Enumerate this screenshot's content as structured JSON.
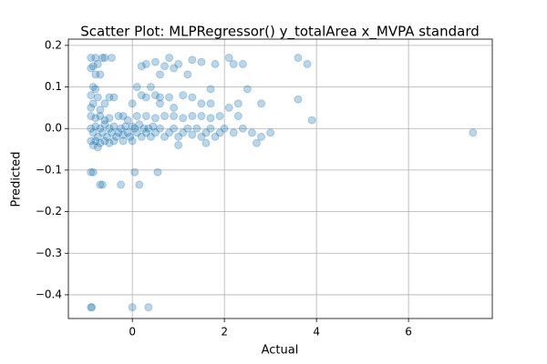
{
  "chart_data": {
    "type": "scatter",
    "title": "Scatter Plot: MLPRegressor() y_totalArea x_MVPA standard",
    "x_label": "Actual",
    "y_label": "Predicted",
    "color": "#1f77b4",
    "grid": true,
    "xlim": [
      -1.39,
      7.82
    ],
    "ylim": [
      -0.457,
      0.215
    ],
    "xticks": [
      0,
      2,
      4,
      6
    ],
    "yticks": [
      {
        "value": -0.4,
        "label": "−0.4"
      },
      {
        "value": -0.3,
        "label": "−0.3"
      },
      {
        "value": -0.2,
        "label": "−0.2"
      },
      {
        "value": -0.1,
        "label": "−0.1"
      },
      {
        "value": 0,
        "label": "0.0"
      },
      0.1,
      0.2
    ],
    "x": [
      -0.9,
      -0.88,
      0,
      0.35,
      -0.9,
      -0.85,
      -0.7,
      -0.65,
      -0.25,
      0.15,
      0.05,
      0.55,
      -0.9,
      -0.85,
      -0.8,
      -0.75,
      -0.65,
      -0.6,
      -0.45,
      -0.9,
      -0.8,
      -0.7,
      -0.85,
      -0.8,
      -0.9,
      -0.75,
      -0.5,
      -0.4,
      -0.85,
      -0.6,
      -0.9,
      -0.7,
      -0.9,
      -0.8,
      -0.7,
      -0.6,
      -0.5,
      -0.3,
      -0.2,
      -0.9,
      -0.85,
      -0.8,
      -0.75,
      -0.7,
      -0.65,
      -0.6,
      -0.55,
      -0.5,
      -0.45,
      -0.4,
      -0.35,
      -0.3,
      -0.25,
      -0.2,
      -0.15,
      -0.1,
      -0.05,
      -0.9,
      -0.85,
      -0.8,
      -0.75,
      -0.7,
      -0.6,
      -0.5,
      -0.4,
      -0.2,
      0,
      0.05,
      0.1,
      0.15,
      0.2,
      0.25,
      0.3,
      0.35,
      0.4,
      0.45,
      0.5,
      0.6,
      0.7,
      0.8,
      0.9,
      1.0,
      1.1,
      1.2,
      1.3,
      1.4,
      1.5,
      1.6,
      1.7,
      1.8,
      1.9,
      2.0,
      2.2,
      2.4,
      2.6,
      2.8,
      3.0,
      0.1,
      0.3,
      0.5,
      0.7,
      0.9,
      1.1,
      1.3,
      1.5,
      1.7,
      1.9,
      2.3,
      0,
      0.2,
      0.3,
      0.5,
      0.6,
      0.8,
      1.1,
      1.3,
      0.6,
      0.9,
      1.5,
      1.7,
      2.1,
      2.3,
      2.8,
      0.2,
      0.3,
      0.5,
      0.6,
      0.7,
      0.8,
      0.9,
      1.0,
      1.2,
      1.3,
      1.5,
      1.8,
      2.1,
      2.2,
      2.4,
      0.1,
      0.4,
      1.7,
      2.5,
      0,
      -0.1,
      1.0,
      1.6,
      2.7,
      3.6,
      3.8,
      3.6,
      3.9,
      7.4
    ],
    "values": [
      -0.43,
      -0.43,
      -0.43,
      -0.43,
      -0.105,
      -0.105,
      -0.135,
      -0.135,
      -0.135,
      -0.135,
      -0.105,
      -0.105,
      0.17,
      0.15,
      0.17,
      0.155,
      0.17,
      0.17,
      0.17,
      0.145,
      0.13,
      0.13,
      0.1,
      0.095,
      0.08,
      0.075,
      0.075,
      0.075,
      0.06,
      0.06,
      0.05,
      0.045,
      0.03,
      0.025,
      0.03,
      0.02,
      0.025,
      0.03,
      0.03,
      0,
      -0.01,
      0.005,
      -0.02,
      0,
      -0.01,
      0.01,
      -0.02,
      0,
      -0.01,
      0.005,
      -0.02,
      -0.01,
      0,
      -0.015,
      0.005,
      -0.01,
      -0.02,
      -0.03,
      -0.04,
      -0.03,
      -0.045,
      -0.035,
      -0.03,
      -0.035,
      -0.03,
      -0.03,
      -0.03,
      0,
      -0.01,
      0.01,
      -0.02,
      0,
      -0.01,
      0,
      -0.02,
      0.005,
      -0.01,
      0,
      -0.02,
      -0.01,
      0,
      -0.02,
      -0.01,
      0,
      -0.015,
      0,
      -0.02,
      -0.01,
      0,
      -0.02,
      -0.01,
      0,
      -0.01,
      0,
      -0.01,
      -0.02,
      -0.01,
      0.03,
      0.03,
      0.025,
      0.03,
      0.03,
      0.025,
      0.03,
      0.03,
      0.025,
      0.03,
      0.03,
      0.06,
      0.08,
      0.075,
      0.08,
      0.075,
      0.075,
      0.08,
      0.075,
      0.06,
      0.05,
      0.06,
      0.06,
      0.05,
      0.06,
      0.06,
      0.15,
      0.155,
      0.16,
      0.13,
      0.15,
      0.17,
      0.145,
      0.155,
      0.13,
      0.165,
      0.16,
      0.155,
      0.17,
      0.155,
      0.155,
      0.1,
      0.1,
      0.095,
      0.095,
      0.005,
      0.02,
      -0.04,
      -0.035,
      -0.035,
      0.17,
      0.155,
      0.07,
      0.02,
      -0.01
    ]
  }
}
